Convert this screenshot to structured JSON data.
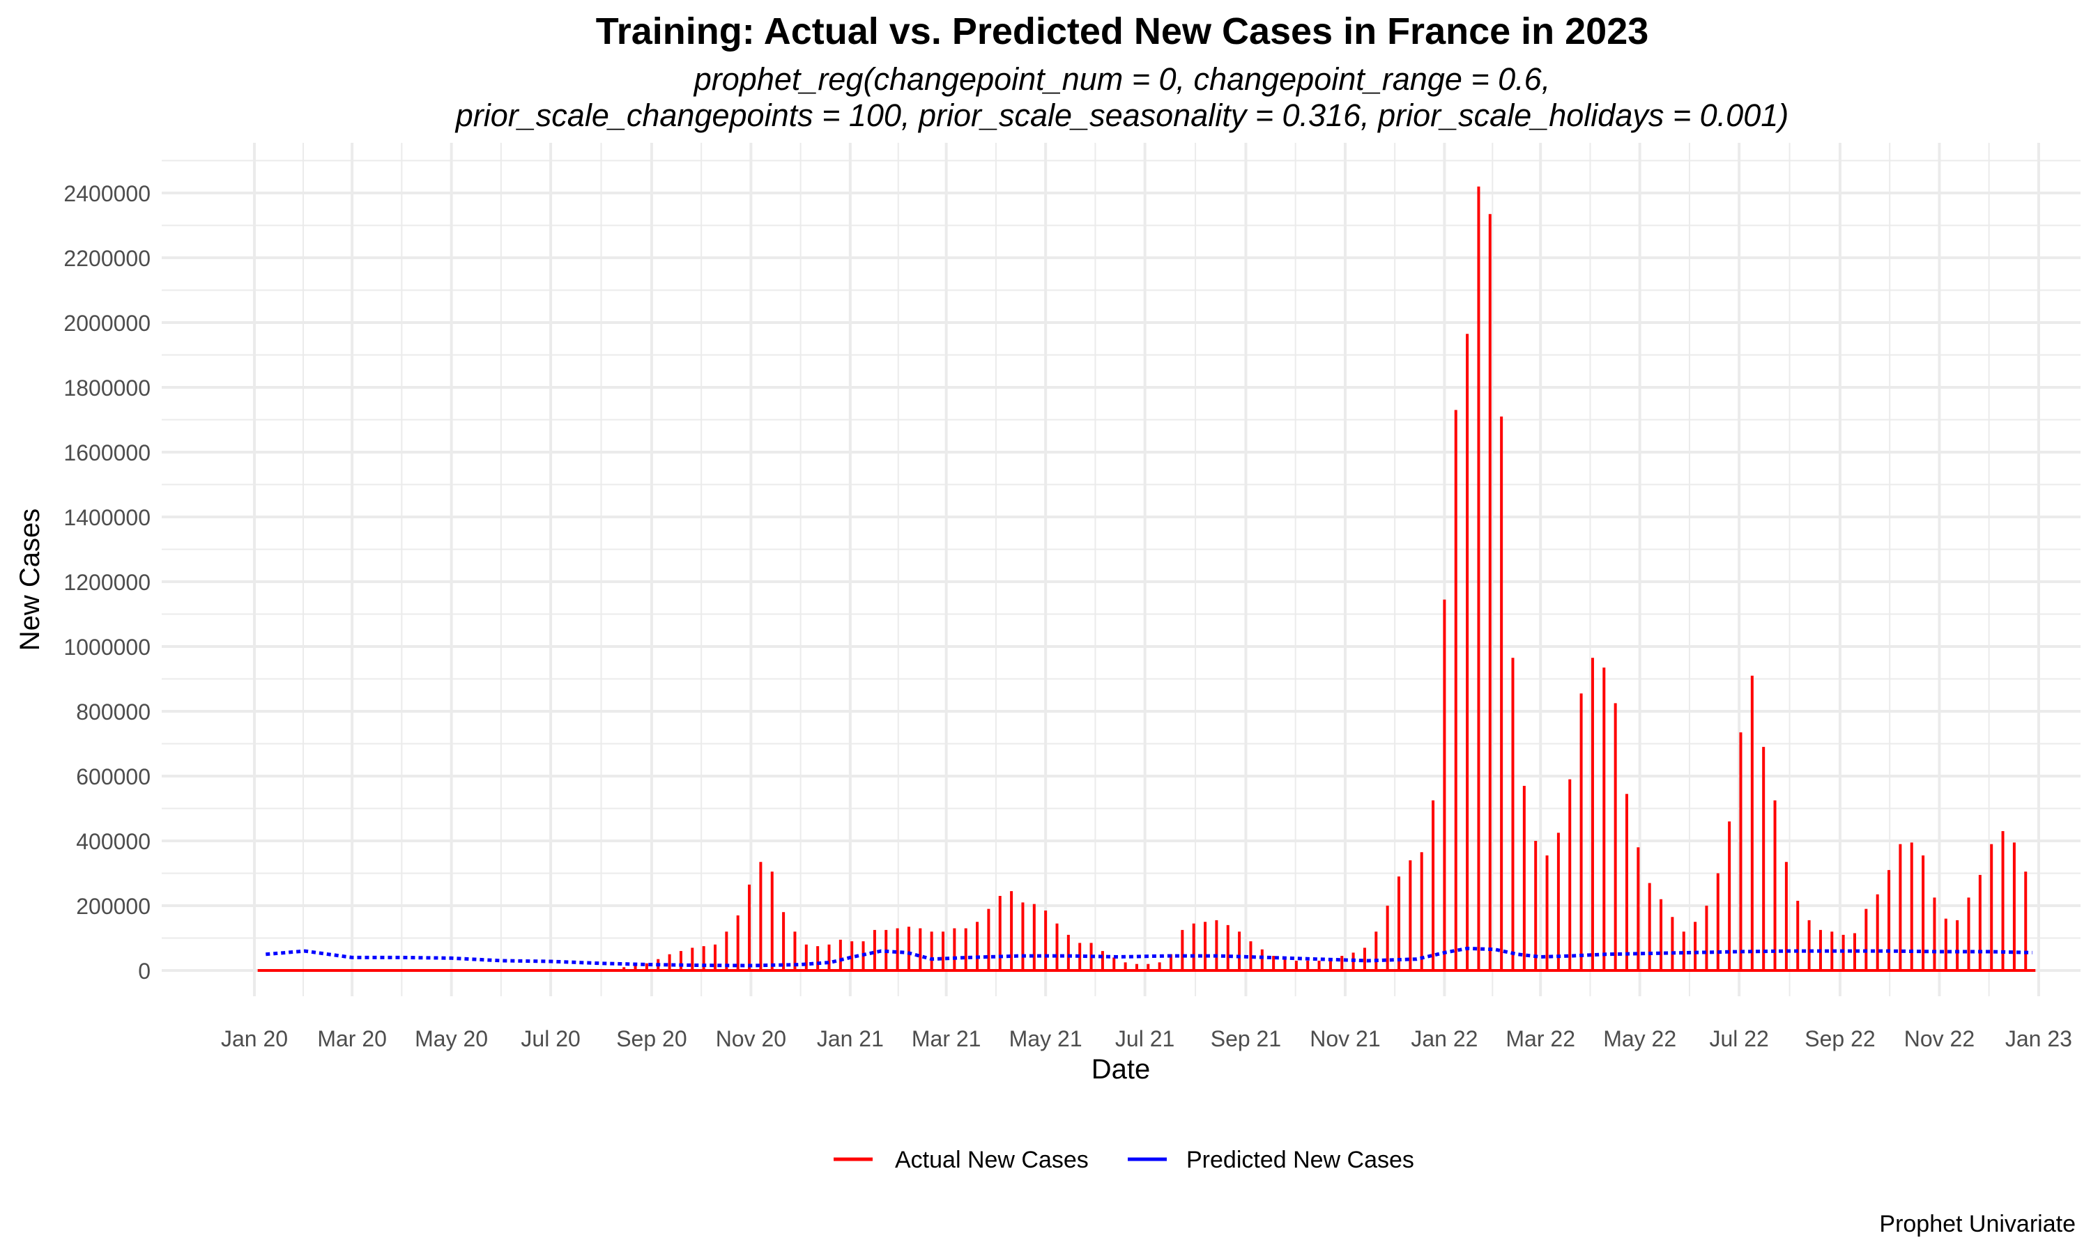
{
  "title": "Training: Actual vs. Predicted New Cases in France in 2023",
  "subtitle_line1": "prophet_reg(changepoint_num = 0, changepoint_range = 0.6,",
  "subtitle_line2": "prior_scale_changepoints = 100, prior_scale_seasonality = 0.316, prior_scale_holidays = 0.001)",
  "caption": "Prophet Univariate",
  "chart_data": {
    "type": "line",
    "xlabel": "Date",
    "ylabel": "New Cases",
    "x_ticks": [
      "Jan 20",
      "Mar 20",
      "May 20",
      "Jul 20",
      "Sep 20",
      "Nov 20",
      "Jan 21",
      "Mar 21",
      "May 21",
      "Jul 21",
      "Sep 21",
      "Nov 21",
      "Jan 22",
      "Mar 22",
      "May 22",
      "Jul 22",
      "Sep 22",
      "Nov 22",
      "Jan 23"
    ],
    "y_ticks": [
      0,
      200000,
      400000,
      600000,
      800000,
      1000000,
      1200000,
      1400000,
      1600000,
      1800000,
      2000000,
      2200000,
      2400000
    ],
    "ylim": [
      -90000,
      2500000
    ],
    "x_range": [
      "2020-01-01",
      "2023-01-01"
    ],
    "grid": true,
    "legend_position": "bottom",
    "colors": {
      "actual": "#ff0000",
      "predicted": "#0000ff"
    },
    "series": [
      {
        "name": "Actual New Cases",
        "note": "weekly reported totals (zero on other days)",
        "points": [
          [
            "2020-08-15",
            10000
          ],
          [
            "2020-08-22",
            15000
          ],
          [
            "2020-08-29",
            22000
          ],
          [
            "2020-09-05",
            35000
          ],
          [
            "2020-09-12",
            50000
          ],
          [
            "2020-09-19",
            60000
          ],
          [
            "2020-09-26",
            70000
          ],
          [
            "2020-10-03",
            75000
          ],
          [
            "2020-10-10",
            80000
          ],
          [
            "2020-10-17",
            120000
          ],
          [
            "2020-10-24",
            170000
          ],
          [
            "2020-10-31",
            265000
          ],
          [
            "2020-11-07",
            335000
          ],
          [
            "2020-11-14",
            305000
          ],
          [
            "2020-11-21",
            180000
          ],
          [
            "2020-11-28",
            120000
          ],
          [
            "2020-12-05",
            80000
          ],
          [
            "2020-12-12",
            75000
          ],
          [
            "2020-12-19",
            80000
          ],
          [
            "2020-12-26",
            95000
          ],
          [
            "2021-01-02",
            90000
          ],
          [
            "2021-01-09",
            90000
          ],
          [
            "2021-01-16",
            125000
          ],
          [
            "2021-01-23",
            125000
          ],
          [
            "2021-01-30",
            130000
          ],
          [
            "2021-02-06",
            135000
          ],
          [
            "2021-02-13",
            130000
          ],
          [
            "2021-02-20",
            120000
          ],
          [
            "2021-02-27",
            120000
          ],
          [
            "2021-03-06",
            130000
          ],
          [
            "2021-03-13",
            130000
          ],
          [
            "2021-03-20",
            150000
          ],
          [
            "2021-03-27",
            190000
          ],
          [
            "2021-04-03",
            230000
          ],
          [
            "2021-04-10",
            245000
          ],
          [
            "2021-04-17",
            210000
          ],
          [
            "2021-04-24",
            205000
          ],
          [
            "2021-05-01",
            185000
          ],
          [
            "2021-05-08",
            145000
          ],
          [
            "2021-05-15",
            110000
          ],
          [
            "2021-05-22",
            85000
          ],
          [
            "2021-05-29",
            85000
          ],
          [
            "2021-06-05",
            60000
          ],
          [
            "2021-06-12",
            40000
          ],
          [
            "2021-06-19",
            25000
          ],
          [
            "2021-06-26",
            20000
          ],
          [
            "2021-07-03",
            20000
          ],
          [
            "2021-07-10",
            25000
          ],
          [
            "2021-07-17",
            50000
          ],
          [
            "2021-07-24",
            125000
          ],
          [
            "2021-07-31",
            145000
          ],
          [
            "2021-08-07",
            150000
          ],
          [
            "2021-08-14",
            155000
          ],
          [
            "2021-08-21",
            140000
          ],
          [
            "2021-08-28",
            120000
          ],
          [
            "2021-09-04",
            90000
          ],
          [
            "2021-09-11",
            65000
          ],
          [
            "2021-09-18",
            45000
          ],
          [
            "2021-09-25",
            35000
          ],
          [
            "2021-10-02",
            30000
          ],
          [
            "2021-10-09",
            30000
          ],
          [
            "2021-10-16",
            30000
          ],
          [
            "2021-10-23",
            35000
          ],
          [
            "2021-10-30",
            45000
          ],
          [
            "2021-11-06",
            55000
          ],
          [
            "2021-11-13",
            70000
          ],
          [
            "2021-11-20",
            120000
          ],
          [
            "2021-11-27",
            200000
          ],
          [
            "2021-12-04",
            290000
          ],
          [
            "2021-12-11",
            340000
          ],
          [
            "2021-12-18",
            365000
          ],
          [
            "2021-12-25",
            525000
          ],
          [
            "2022-01-01",
            1145000
          ],
          [
            "2022-01-08",
            1730000
          ],
          [
            "2022-01-15",
            1965000
          ],
          [
            "2022-01-22",
            2420000
          ],
          [
            "2022-01-29",
            2335000
          ],
          [
            "2022-02-05",
            1710000
          ],
          [
            "2022-02-12",
            965000
          ],
          [
            "2022-02-19",
            570000
          ],
          [
            "2022-02-26",
            400000
          ],
          [
            "2022-03-05",
            355000
          ],
          [
            "2022-03-12",
            425000
          ],
          [
            "2022-03-19",
            590000
          ],
          [
            "2022-03-26",
            855000
          ],
          [
            "2022-04-02",
            965000
          ],
          [
            "2022-04-09",
            935000
          ],
          [
            "2022-04-16",
            825000
          ],
          [
            "2022-04-23",
            545000
          ],
          [
            "2022-04-30",
            380000
          ],
          [
            "2022-05-07",
            270000
          ],
          [
            "2022-05-14",
            220000
          ],
          [
            "2022-05-21",
            165000
          ],
          [
            "2022-05-28",
            120000
          ],
          [
            "2022-06-04",
            150000
          ],
          [
            "2022-06-11",
            200000
          ],
          [
            "2022-06-18",
            300000
          ],
          [
            "2022-06-25",
            460000
          ],
          [
            "2022-07-02",
            735000
          ],
          [
            "2022-07-09",
            910000
          ],
          [
            "2022-07-16",
            690000
          ],
          [
            "2022-07-23",
            525000
          ],
          [
            "2022-07-30",
            335000
          ],
          [
            "2022-08-06",
            215000
          ],
          [
            "2022-08-13",
            155000
          ],
          [
            "2022-08-20",
            125000
          ],
          [
            "2022-08-27",
            120000
          ],
          [
            "2022-09-03",
            110000
          ],
          [
            "2022-09-10",
            115000
          ],
          [
            "2022-09-17",
            190000
          ],
          [
            "2022-09-24",
            235000
          ],
          [
            "2022-10-01",
            310000
          ],
          [
            "2022-10-08",
            390000
          ],
          [
            "2022-10-15",
            395000
          ],
          [
            "2022-10-22",
            355000
          ],
          [
            "2022-10-29",
            225000
          ],
          [
            "2022-11-05",
            160000
          ],
          [
            "2022-11-12",
            155000
          ],
          [
            "2022-11-19",
            225000
          ],
          [
            "2022-11-26",
            295000
          ],
          [
            "2022-12-03",
            390000
          ],
          [
            "2022-12-10",
            430000
          ],
          [
            "2022-12-17",
            395000
          ],
          [
            "2022-12-24",
            305000
          ]
        ]
      },
      {
        "name": "Predicted New Cases",
        "note": "dotted weekly-seasonal pattern early, smooth trend later",
        "points": [
          [
            "2020-01-08",
            50000
          ],
          [
            "2020-02-01",
            60000
          ],
          [
            "2020-03-01",
            40000
          ],
          [
            "2020-04-01",
            40000
          ],
          [
            "2020-05-01",
            38000
          ],
          [
            "2020-06-01",
            30000
          ],
          [
            "2020-07-01",
            28000
          ],
          [
            "2020-08-01",
            22000
          ],
          [
            "2020-09-01",
            18000
          ],
          [
            "2020-10-01",
            16000
          ],
          [
            "2020-11-01",
            15000
          ],
          [
            "2020-12-01",
            18000
          ],
          [
            "2020-12-20",
            25000
          ],
          [
            "2021-01-01",
            40000
          ],
          [
            "2021-01-20",
            60000
          ],
          [
            "2021-02-05",
            55000
          ],
          [
            "2021-02-20",
            35000
          ],
          [
            "2021-03-15",
            40000
          ],
          [
            "2021-04-15",
            45000
          ],
          [
            "2021-05-15",
            45000
          ],
          [
            "2021-06-15",
            42000
          ],
          [
            "2021-07-15",
            45000
          ],
          [
            "2021-08-15",
            45000
          ],
          [
            "2021-09-15",
            40000
          ],
          [
            "2021-10-15",
            35000
          ],
          [
            "2021-11-15",
            30000
          ],
          [
            "2021-12-15",
            35000
          ],
          [
            "2022-01-01",
            55000
          ],
          [
            "2022-01-15",
            68000
          ],
          [
            "2022-02-01",
            65000
          ],
          [
            "2022-02-15",
            50000
          ],
          [
            "2022-03-01",
            42000
          ],
          [
            "2022-03-20",
            45000
          ],
          [
            "2022-04-10",
            50000
          ],
          [
            "2022-05-01",
            52000
          ],
          [
            "2022-06-01",
            55000
          ],
          [
            "2022-07-01",
            58000
          ],
          [
            "2022-08-01",
            60000
          ],
          [
            "2022-09-01",
            60000
          ],
          [
            "2022-10-01",
            60000
          ],
          [
            "2022-11-01",
            58000
          ],
          [
            "2022-12-01",
            58000
          ],
          [
            "2022-12-28",
            55000
          ]
        ]
      }
    ]
  }
}
